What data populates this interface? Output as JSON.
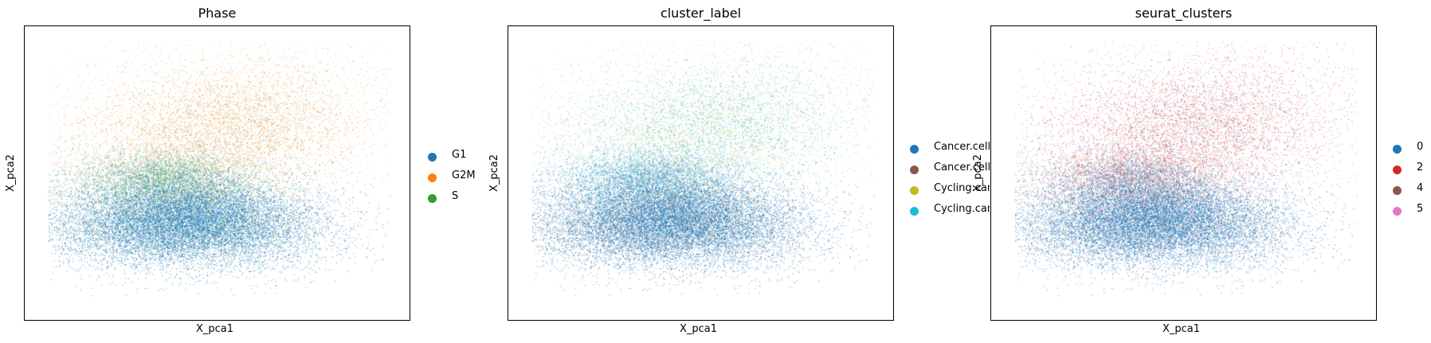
{
  "chart_data": [
    {
      "type": "scatter",
      "title": "Phase",
      "xlabel": "X_pca1",
      "ylabel": "X_pca2",
      "grid": false,
      "legend_position": "right",
      "series": [
        {
          "name": "G1",
          "color": "#1f77b4"
        },
        {
          "name": "G2M",
          "color": "#ff7f0e"
        },
        {
          "name": "S",
          "color": "#2ca02c"
        }
      ]
    },
    {
      "type": "scatter",
      "title": "cluster_label",
      "xlabel": "X_pca1",
      "ylabel": "X_pca2",
      "grid": false,
      "legend_position": "right",
      "series": [
        {
          "name": "Cancer.cell",
          "color": "#1f77b4"
        },
        {
          "name": "Cancer.cell",
          "color": "#8c564b"
        },
        {
          "name": "Cycling.cancer",
          "color": "#bcbd22"
        },
        {
          "name": "Cycling.cancer",
          "color": "#17becf"
        }
      ]
    },
    {
      "type": "scatter",
      "title": "seurat_clusters",
      "xlabel": "X_pca1",
      "ylabel": "X_pca2",
      "grid": false,
      "legend_position": "right",
      "series": [
        {
          "name": "0",
          "color": "#1f77b4"
        },
        {
          "name": "2",
          "color": "#d62728"
        },
        {
          "name": "4",
          "color": "#8c564b"
        },
        {
          "name": "5",
          "color": "#e377c2"
        }
      ]
    }
  ]
}
